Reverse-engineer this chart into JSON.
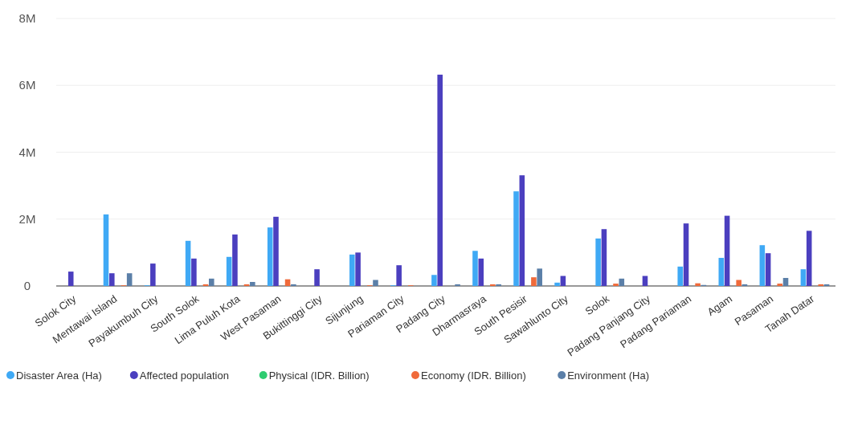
{
  "chart_data": {
    "type": "bar",
    "categories": [
      "Solok City",
      "Mentawai Island",
      "Payakumbuh City",
      "South Solok",
      "Lima Puluh Kota",
      "West Pasaman",
      "Bukittinggi City",
      "Sijunjung",
      "Pariaman City",
      "Padang City",
      "Dharmasraya",
      "South Pesisir",
      "Sawahlunto City",
      "Solok",
      "Padang Panjang City",
      "Padang Pariaman",
      "Agam",
      "Pasaman",
      "Tanah Datar"
    ],
    "series": [
      {
        "name": "Disaster Area (Ha)",
        "color": "#3fa9f5",
        "values": [
          0,
          2140000,
          20000,
          1350000,
          870000,
          1750000,
          0,
          940000,
          20000,
          330000,
          1050000,
          2830000,
          100000,
          1420000,
          0,
          580000,
          840000,
          1220000,
          500000
        ]
      },
      {
        "name": "Affected population",
        "color": "#4b3fbf",
        "values": [
          430000,
          380000,
          670000,
          820000,
          1540000,
          2070000,
          500000,
          1000000,
          620000,
          6320000,
          820000,
          3310000,
          300000,
          1700000,
          300000,
          1870000,
          2100000,
          980000,
          1650000
        ]
      },
      {
        "name": "Physical (IDR. Billion)",
        "color": "#2ecc71",
        "values": [
          0,
          0,
          0,
          0,
          0,
          0,
          0,
          0,
          0,
          0,
          0,
          0,
          0,
          0,
          0,
          0,
          0,
          0,
          0
        ]
      },
      {
        "name": "Economy (IDR. Billion)",
        "color": "#f06a3a",
        "values": [
          0,
          20000,
          0,
          50000,
          50000,
          200000,
          0,
          20000,
          20000,
          0,
          50000,
          260000,
          0,
          70000,
          0,
          80000,
          180000,
          70000,
          50000
        ]
      },
      {
        "name": "Environment (Ha)",
        "color": "#5b7fa8",
        "values": [
          0,
          380000,
          0,
          220000,
          120000,
          50000,
          0,
          180000,
          0,
          50000,
          50000,
          520000,
          0,
          220000,
          0,
          30000,
          50000,
          240000,
          50000
        ]
      }
    ],
    "ylim": [
      0,
      8000000
    ],
    "yticks": [
      {
        "value": 0,
        "label": "0"
      },
      {
        "value": 2000000,
        "label": "2M"
      },
      {
        "value": 4000000,
        "label": "4M"
      },
      {
        "value": 6000000,
        "label": "6M"
      },
      {
        "value": 8000000,
        "label": "8M"
      }
    ],
    "grid": "y",
    "legend": "bottom"
  }
}
